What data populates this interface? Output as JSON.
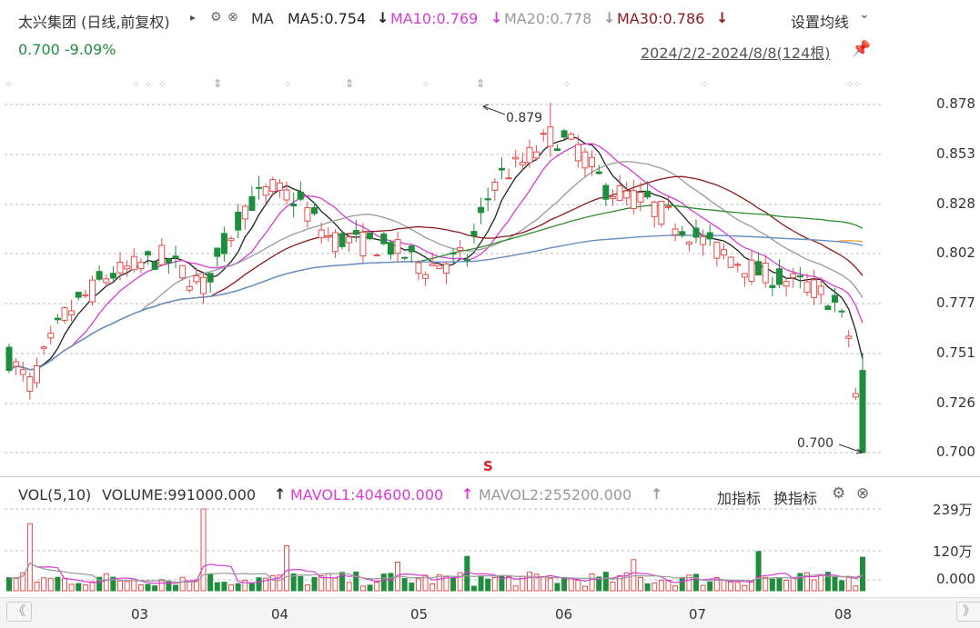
{
  "header": {
    "stock_title": "太兴集团 (日线,前复权)",
    "play_glyph": "▸",
    "ma_label": "MA",
    "ma5": "MA5:0.754",
    "ma10": "MA10:0.769",
    "ma20": "MA20:0.778",
    "ma30": "MA30:0.786",
    "down_arrow": "↓",
    "settings_label": "设置均线",
    "chevron": "⌄",
    "price_change": "0.700  -9.09%",
    "date_range": "2024/2/2-2024/8/8(124根)",
    "colors": {
      "ma5": "#222222",
      "ma10": "#d63bd6",
      "ma20": "#999999",
      "ma30": "#8b1a1a",
      "up": "#e84b4b",
      "down": "#1e8e3e"
    }
  },
  "price_axis": [
    "0.878",
    "0.853",
    "0.828",
    "0.802",
    "0.777",
    "0.751",
    "0.726",
    "0.700"
  ],
  "annotations": {
    "high": "0.879",
    "low": "0.700",
    "signal": "S"
  },
  "volume_panel": {
    "title": "VOL(5,10)",
    "volume": "VOLUME:991000.000",
    "mavol1": "MAVOL1:404600.000",
    "mavol2": "MAVOL2:255200.000",
    "up_arrow": "↑",
    "add_indicator": "加指标",
    "switch_indicator": "换指标",
    "axis": [
      "239万",
      "120万",
      "0.000"
    ]
  },
  "x_axis": [
    "03",
    "04",
    "05",
    "06",
    "07",
    "08"
  ],
  "nav": {
    "left": "《",
    "right": "》"
  },
  "chart_data": {
    "type": "candlestick",
    "ylim": [
      0.69,
      0.885
    ],
    "first_close": 0.746,
    "ma5_last": 0.754,
    "ma10_last": 0.769,
    "ma20_last": 0.778,
    "ma30_last": 0.786,
    "high_value": 0.879,
    "last_close": 0.7,
    "volume_last": 991000,
    "volume_ylim": [
      0,
      2390000
    ]
  }
}
